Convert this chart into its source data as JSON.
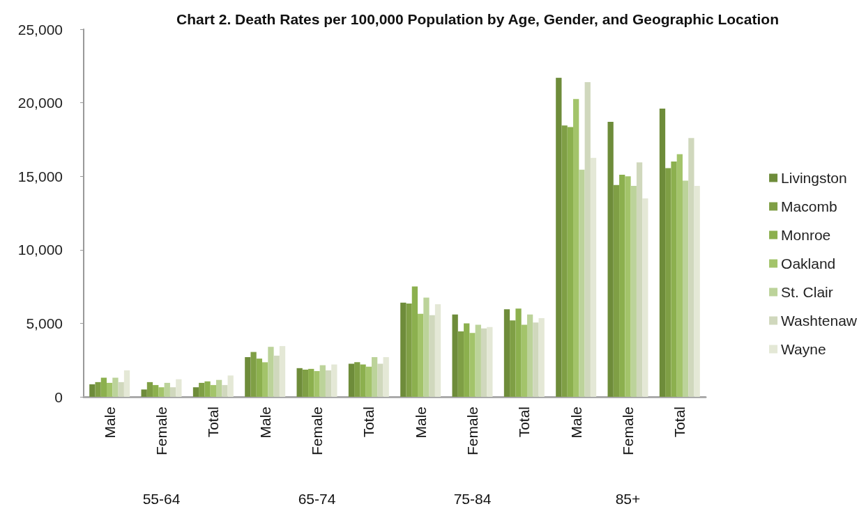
{
  "chart_data": {
    "type": "bar",
    "title": "Chart 2. Death Rates per 100,000 Population by Age, Gender, and Geographic Location",
    "categories": [
      "Male",
      "Female",
      "Total",
      "Male",
      "Female",
      "Total",
      "Male",
      "Female",
      "Total",
      "Male",
      "Female",
      "Total"
    ],
    "annotations": [
      "55-64",
      "65-74",
      "75-84",
      "85+"
    ],
    "series": [
      {
        "name": "Livingston",
        "color": "#6e8c3a",
        "values": [
          850,
          500,
          650,
          2700,
          1950,
          2250,
          6400,
          5600,
          5950,
          21700,
          18700,
          19600
        ]
      },
      {
        "name": "Macomb",
        "color": "#7f9f45",
        "values": [
          1000,
          1000,
          950,
          3050,
          1850,
          2350,
          6350,
          4450,
          5200,
          18450,
          14400,
          15550
        ]
      },
      {
        "name": "Monroe",
        "color": "#8cb04e",
        "values": [
          1300,
          800,
          1050,
          2600,
          1900,
          2200,
          7500,
          5000,
          6000,
          18350,
          15100,
          16000
        ]
      },
      {
        "name": "Oakland",
        "color": "#a3c46a",
        "values": [
          950,
          650,
          800,
          2350,
          1750,
          2050,
          5650,
          4350,
          4900,
          20250,
          15000,
          16500
        ]
      },
      {
        "name": "St. Clair",
        "color": "#bcd39a",
        "values": [
          1300,
          950,
          1150,
          3400,
          2150,
          2700,
          6750,
          4900,
          5600,
          15450,
          14350,
          14700
        ]
      },
      {
        "name": "Washtenaw",
        "color": "#d0d8bd",
        "values": [
          1000,
          650,
          800,
          2800,
          1800,
          2250,
          5550,
          4650,
          5050,
          21400,
          15950,
          17600
        ]
      },
      {
        "name": "Wayne",
        "color": "#e4e8d6",
        "values": [
          1800,
          1200,
          1450,
          3450,
          2200,
          2700,
          6300,
          4750,
          5350,
          16250,
          13500,
          14350
        ]
      }
    ],
    "ylim": [
      0,
      25000
    ],
    "yticks": [
      0,
      {
        "value": 5000,
        "label": "5,000"
      },
      {
        "value": 10000,
        "label": "10,000"
      },
      {
        "value": 15000,
        "label": "15,000"
      },
      {
        "value": 20000,
        "label": "20,000"
      },
      {
        "value": 25000,
        "label": "25,000"
      }
    ],
    "grid": false,
    "legend": "right"
  }
}
